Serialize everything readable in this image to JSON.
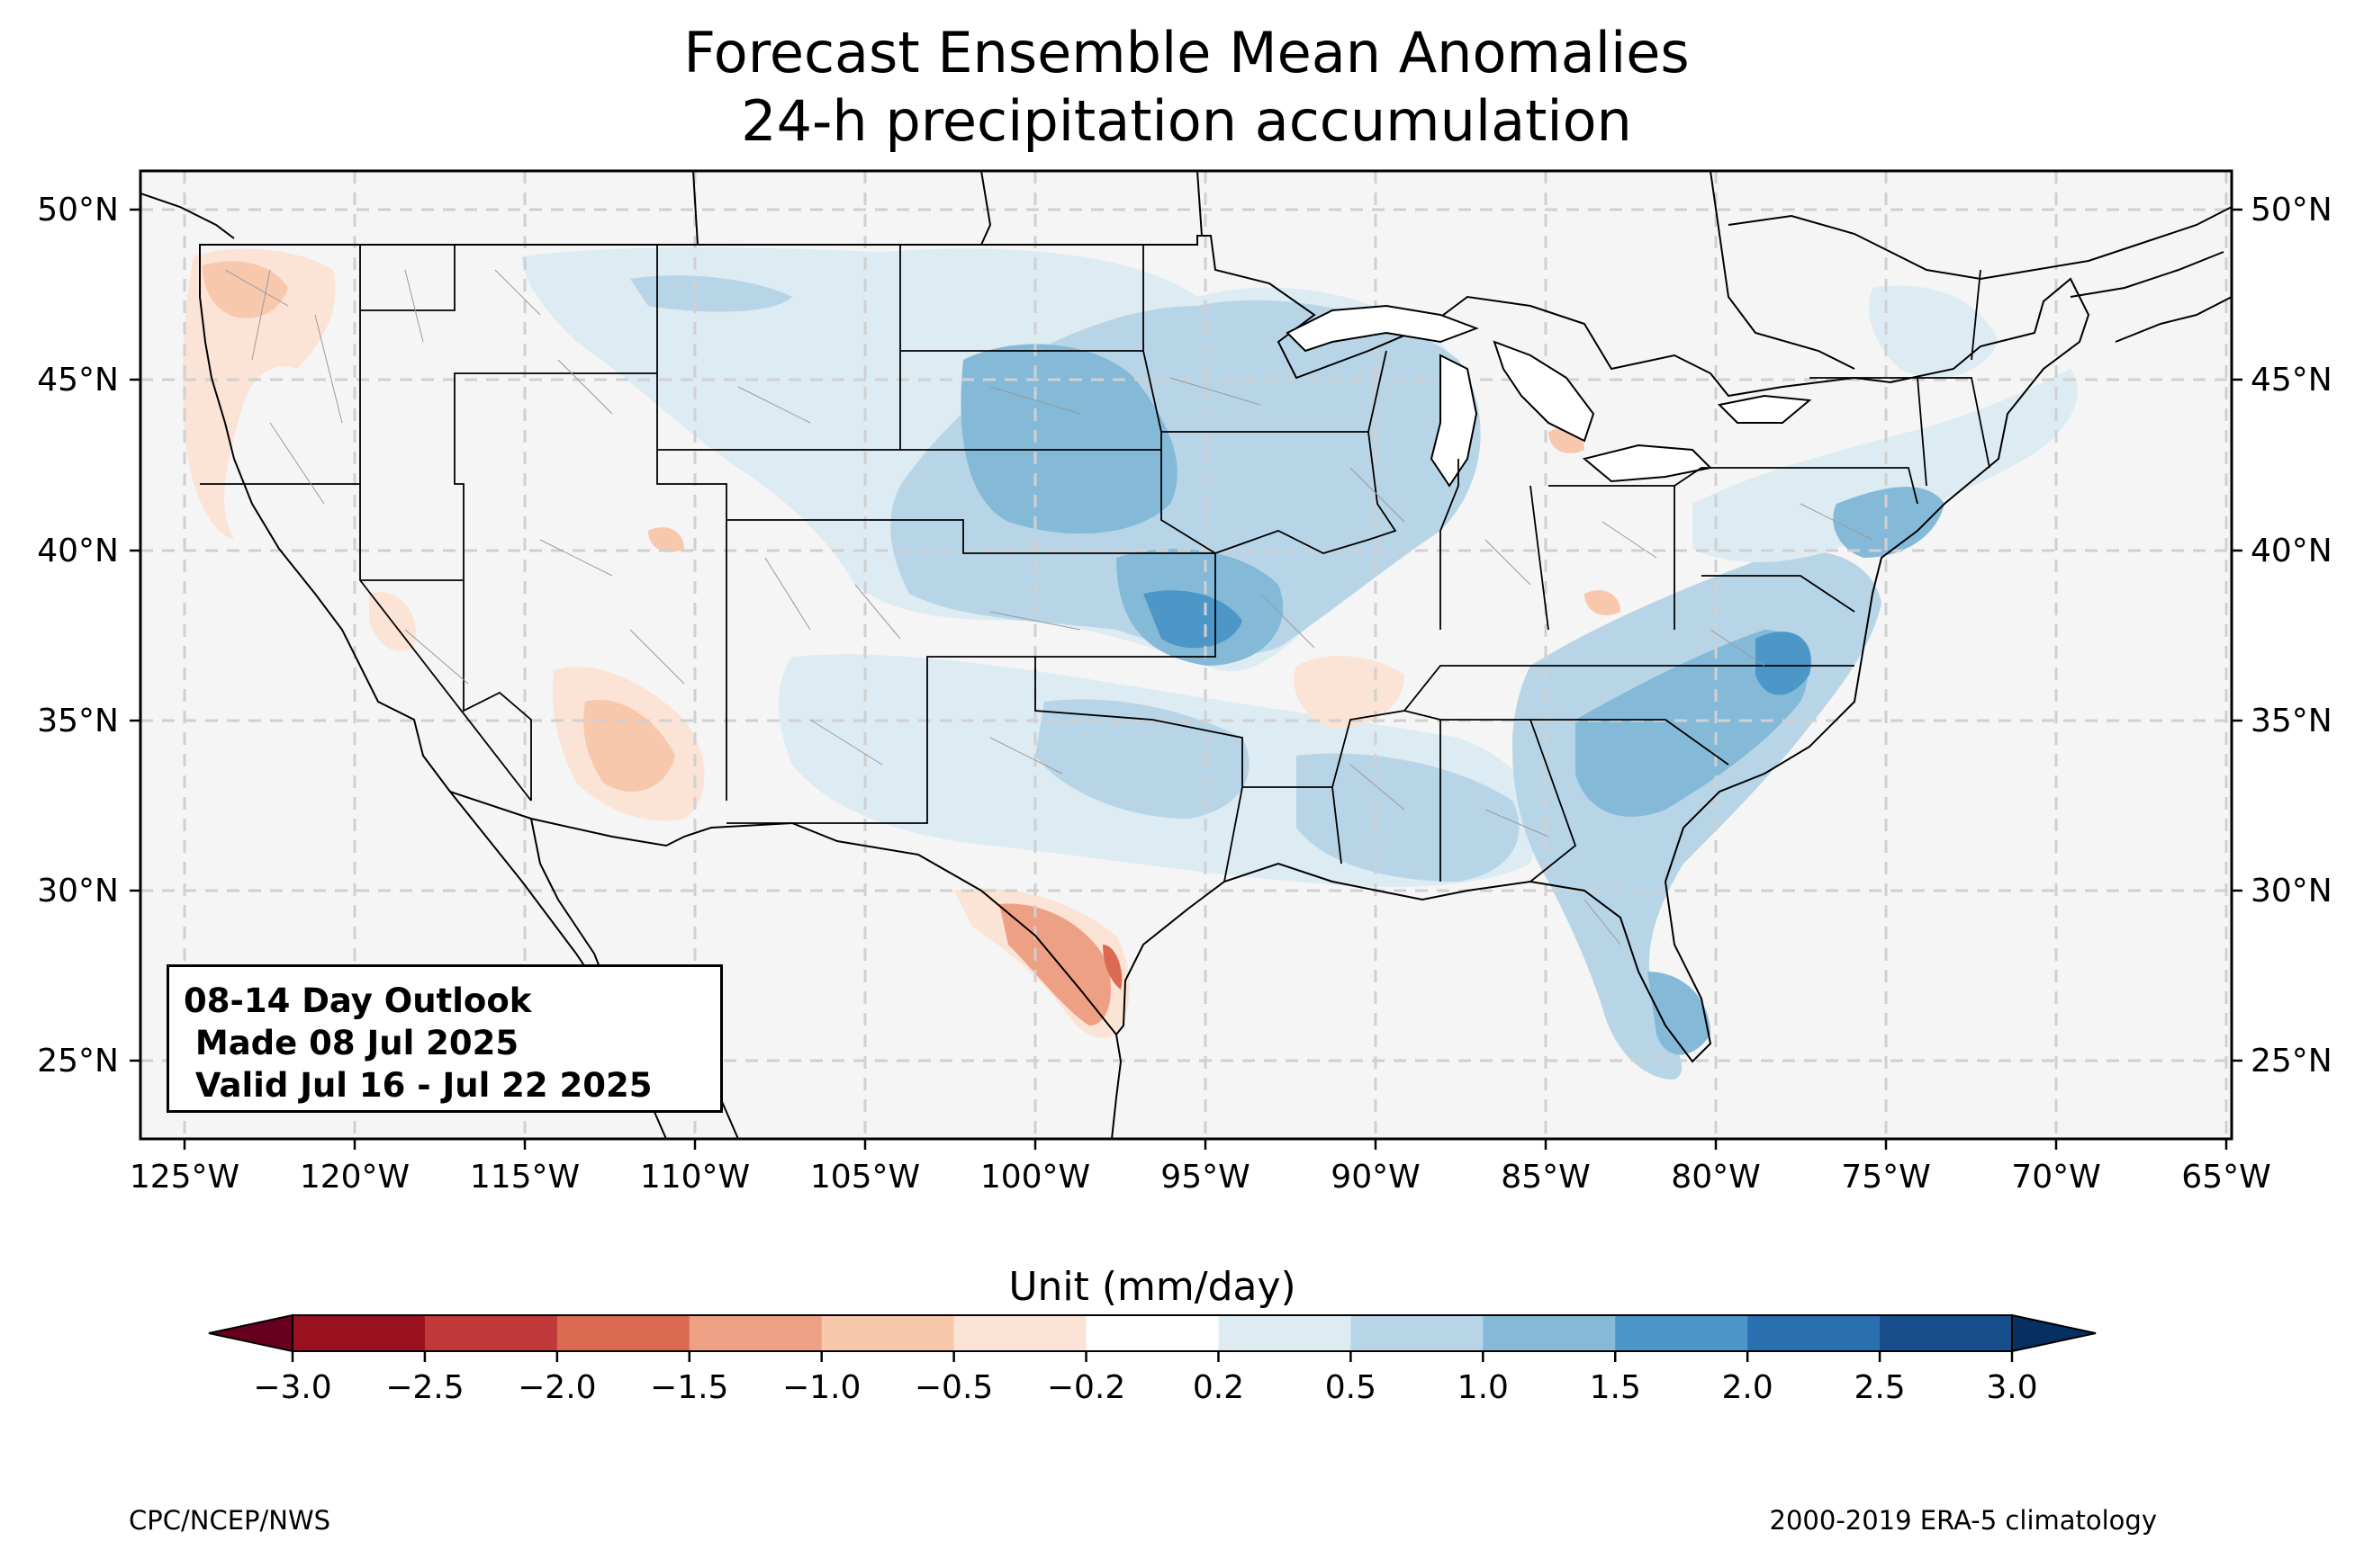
{
  "title": {
    "line1": "Forecast Ensemble Mean Anomalies",
    "line2": "24-h precipitation accumulation"
  },
  "info_box": {
    "line1": "08-14 Day Outlook",
    "line2": " Made 08 Jul 2025",
    "line3": " Valid Jul 16 - Jul 22 2025"
  },
  "axes": {
    "lon_labels": [
      "125°W",
      "120°W",
      "115°W",
      "110°W",
      "105°W",
      "100°W",
      "95°W",
      "90°W",
      "85°W",
      "80°W",
      "75°W",
      "70°W",
      "65°W"
    ],
    "lat_labels": [
      "50°N",
      "45°N",
      "40°N",
      "35°N",
      "30°N",
      "25°N"
    ]
  },
  "colorbar": {
    "title": "Unit (mm/day)",
    "ticks": [
      "−3.0",
      "−2.5",
      "−2.0",
      "−1.5",
      "−1.0",
      "−0.5",
      "−0.2",
      "0.2",
      "0.5",
      "1.0",
      "1.5",
      "2.0",
      "2.5",
      "3.0"
    ],
    "colors": [
      "#99101f",
      "#c0393a",
      "#dc6a53",
      "#eea084",
      "#f8c8ad",
      "#fbe3d5",
      "#ffffff",
      "#ddebf3",
      "#b8d5e8",
      "#84bad8",
      "#4d97c8",
      "#2a70b0",
      "#174d8a"
    ],
    "extend_min_color": "#67001f",
    "extend_max_color": "#053061"
  },
  "footer": {
    "left": "CPC/NCEP/NWS",
    "right": "2000-2019 ERA-5 climatology"
  },
  "map": {
    "projection": "PlateCarree",
    "lon_range": [
      -126.2,
      -64.8
    ],
    "lat_range": [
      22.8,
      51.2
    ],
    "land_color": "#f5f5f5",
    "gridlines": "dashed"
  }
}
